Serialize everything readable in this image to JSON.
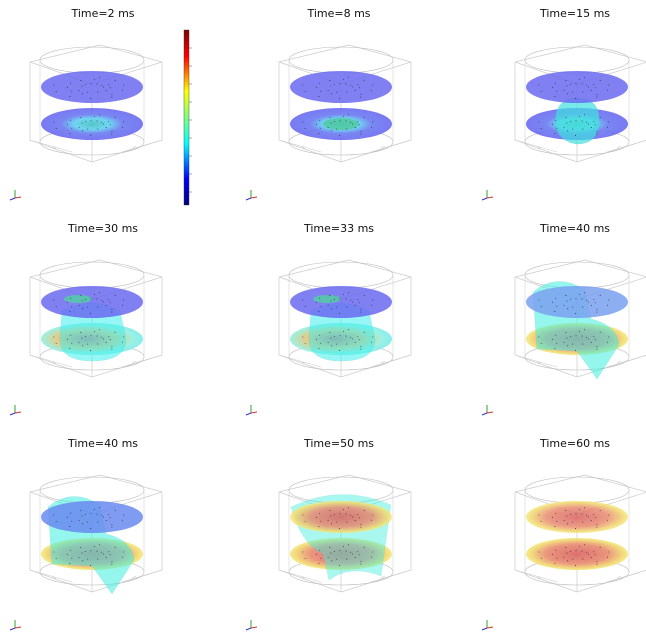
{
  "panels": [
    {
      "title": "Time=2 ms"
    },
    {
      "title": "Time=8 ms"
    },
    {
      "title": "Time=15 ms"
    },
    {
      "title": "Time=30 ms"
    },
    {
      "title": "Time=33 ms"
    },
    {
      "title": "Time=40 ms"
    },
    {
      "title": "Time=40 ms"
    },
    {
      "title": "Time=50 ms"
    },
    {
      "title": "Time=60 ms"
    }
  ]
}
